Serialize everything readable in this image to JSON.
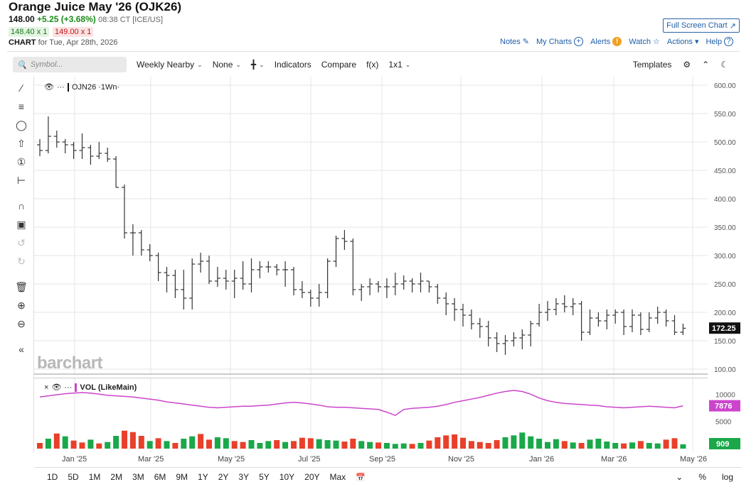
{
  "header": {
    "title": "Orange Juice May '26 (OJK26)",
    "last": "148.00",
    "change": "+5.25 (+3.68%)",
    "time": "08:38 CT [ICE/US]",
    "bid": "148.40 x 1",
    "ask": "149.00 x 1",
    "chart_label": "CHART",
    "chart_for": "for Tue, Apr 28th, 2026",
    "fullscreen": "Full Screen Chart"
  },
  "nav": {
    "notes": "Notes",
    "mycharts": "My Charts",
    "alerts": "Alerts",
    "watch": "Watch",
    "actions": "Actions",
    "help": "Help"
  },
  "toolbar": {
    "symbol_placeholder": "Symbol...",
    "period": "Weekly Nearby",
    "none": "None",
    "indicators": "Indicators",
    "compare": "Compare",
    "fx": "f(x)",
    "layout": "1x1",
    "templates": "Templates"
  },
  "legend": {
    "main": "OJN26 ·1Wn·",
    "vol": "VOL (LikeMain)"
  },
  "watermark": "barchart",
  "colors": {
    "up": "#1aa84a",
    "down": "#e8402a",
    "vol_line": "#cc44cc",
    "price_tag": "#111111",
    "accent": "#1f5ea8"
  },
  "price_axis": {
    "ticks": [
      "600.00",
      "550.00",
      "500.00",
      "450.00",
      "400.00",
      "350.00",
      "300.00",
      "250.00",
      "200.00",
      "150.00",
      "100.00"
    ],
    "last_tag": "172.25"
  },
  "vol_axis": {
    "ticks": [
      "10000",
      "5000"
    ],
    "line_tag": "7876",
    "bar_tag": "909"
  },
  "x_axis": {
    "ticks": [
      "Jan '25",
      "Mar '25",
      "May '25",
      "Jul '25",
      "Sep '25",
      "Nov '25",
      "Jan '26",
      "Mar '26",
      "May '26"
    ]
  },
  "ranges": [
    "1D",
    "5D",
    "1M",
    "2M",
    "3M",
    "6M",
    "9M",
    "1Y",
    "2Y",
    "3Y",
    "5Y",
    "10Y",
    "20Y",
    "Max"
  ],
  "bottom_right": {
    "pct": "%",
    "log": "log"
  },
  "chart_data": {
    "type": "ohlc",
    "ylim": [
      100,
      600
    ],
    "bars": [
      [
        495,
        505,
        475,
        485
      ],
      [
        485,
        545,
        480,
        510
      ],
      [
        510,
        520,
        490,
        500
      ],
      [
        500,
        505,
        480,
        495
      ],
      [
        495,
        500,
        470,
        485
      ],
      [
        485,
        515,
        470,
        490
      ],
      [
        490,
        495,
        460,
        475
      ],
      [
        475,
        500,
        470,
        480
      ],
      [
        480,
        490,
        465,
        470
      ],
      [
        470,
        475,
        420,
        420
      ],
      [
        420,
        425,
        330,
        340
      ],
      [
        340,
        355,
        300,
        340
      ],
      [
        340,
        345,
        300,
        310
      ],
      [
        310,
        320,
        290,
        300
      ],
      [
        300,
        305,
        255,
        270
      ],
      [
        270,
        280,
        235,
        265
      ],
      [
        265,
        275,
        225,
        240
      ],
      [
        240,
        275,
        205,
        225
      ],
      [
        225,
        295,
        205,
        285
      ],
      [
        285,
        305,
        270,
        290
      ],
      [
        290,
        300,
        250,
        255
      ],
      [
        255,
        280,
        245,
        260
      ],
      [
        260,
        275,
        240,
        255
      ],
      [
        255,
        275,
        225,
        260
      ],
      [
        260,
        290,
        240,
        250
      ],
      [
        250,
        295,
        235,
        275
      ],
      [
        275,
        290,
        260,
        280
      ],
      [
        280,
        290,
        270,
        280
      ],
      [
        280,
        285,
        265,
        275
      ],
      [
        275,
        290,
        245,
        275
      ],
      [
        275,
        280,
        230,
        240
      ],
      [
        240,
        255,
        225,
        235
      ],
      [
        235,
        240,
        210,
        225
      ],
      [
        225,
        250,
        210,
        235
      ],
      [
        235,
        295,
        225,
        290
      ],
      [
        290,
        335,
        280,
        330
      ],
      [
        330,
        345,
        310,
        325
      ],
      [
        325,
        330,
        230,
        240
      ],
      [
        240,
        250,
        220,
        245
      ],
      [
        245,
        260,
        230,
        250
      ],
      [
        250,
        255,
        235,
        245
      ],
      [
        245,
        260,
        225,
        245
      ],
      [
        245,
        270,
        230,
        250
      ],
      [
        250,
        265,
        240,
        255
      ],
      [
        255,
        260,
        235,
        250
      ],
      [
        250,
        270,
        235,
        255
      ],
      [
        255,
        255,
        235,
        245
      ],
      [
        245,
        250,
        215,
        225
      ],
      [
        225,
        235,
        195,
        215
      ],
      [
        215,
        225,
        185,
        205
      ],
      [
        205,
        215,
        175,
        195
      ],
      [
        195,
        205,
        170,
        180
      ],
      [
        180,
        190,
        155,
        175
      ],
      [
        175,
        185,
        140,
        155
      ],
      [
        155,
        165,
        130,
        145
      ],
      [
        145,
        160,
        125,
        150
      ],
      [
        150,
        165,
        140,
        155
      ],
      [
        155,
        170,
        135,
        160
      ],
      [
        160,
        185,
        140,
        180
      ],
      [
        180,
        215,
        175,
        200
      ],
      [
        200,
        220,
        185,
        205
      ],
      [
        205,
        225,
        195,
        215
      ],
      [
        215,
        230,
        200,
        210
      ],
      [
        210,
        225,
        195,
        215
      ],
      [
        215,
        220,
        150,
        165
      ],
      [
        165,
        205,
        160,
        190
      ],
      [
        190,
        200,
        175,
        185
      ],
      [
        185,
        205,
        170,
        195
      ],
      [
        195,
        205,
        180,
        200
      ],
      [
        200,
        205,
        160,
        175
      ],
      [
        175,
        205,
        165,
        195
      ],
      [
        195,
        200,
        160,
        170
      ],
      [
        170,
        200,
        165,
        190
      ],
      [
        190,
        210,
        180,
        200
      ],
      [
        200,
        205,
        175,
        185
      ],
      [
        185,
        195,
        160,
        165
      ],
      [
        165,
        180,
        160,
        172
      ]
    ],
    "volume_line": [
      9500,
      9700,
      9900,
      10100,
      10200,
      10300,
      10200,
      10000,
      9800,
      9700,
      9600,
      9500,
      9300,
      9100,
      8900,
      8600,
      8400,
      8200,
      8000,
      7800,
      7600,
      7500,
      7600,
      7700,
      7800,
      7800,
      7900,
      8000,
      8200,
      8400,
      8500,
      8400,
      8200,
      8000,
      7700,
      7600,
      7600,
      7500,
      7400,
      7300,
      7200,
      6700,
      6100,
      7200,
      7400,
      7500,
      7600,
      7800,
      8100,
      8500,
      8800,
      9100,
      9400,
      9800,
      10200,
      10500,
      10700,
      10500,
      10000,
      9300,
      8800,
      8500,
      8300,
      8200,
      8100,
      8000,
      7900,
      7700,
      7600,
      7500,
      7600,
      7700,
      7800,
      7700,
      7600,
      7500,
      7876
    ],
    "volume": [
      1200,
      2100,
      3200,
      2600,
      1700,
      1300,
      1900,
      1100,
      1400,
      2700,
      3800,
      3500,
      2700,
      1600,
      2200,
      1600,
      1200,
      2100,
      2600,
      3100,
      1900,
      2400,
      2200,
      1600,
      1400,
      1800,
      1200,
      1600,
      1800,
      1400,
      1600,
      2300,
      2200,
      2000,
      1800,
      1700,
      1500,
      2100,
      1600,
      1400,
      1300,
      1200,
      1000,
      1100,
      1000,
      1200,
      1700,
      2400,
      2800,
      3000,
      2300,
      1600,
      1400,
      1200,
      1800,
      2400,
      2800,
      3400,
      2600,
      2100,
      1400,
      2000,
      1600,
      1300,
      1200,
      1900,
      2100,
      1500,
      1200,
      1100,
      1300,
      1600,
      1200,
      1100,
      1900,
      2200,
      909
    ],
    "volume_up": [
      0,
      1,
      0,
      1,
      0,
      0,
      1,
      0,
      1,
      1,
      0,
      0,
      0,
      1,
      0,
      1,
      0,
      1,
      1,
      0,
      0,
      1,
      1,
      0,
      0,
      1,
      1,
      1,
      0,
      1,
      0,
      0,
      0,
      1,
      1,
      1,
      0,
      0,
      1,
      1,
      0,
      1,
      1,
      1,
      0,
      1,
      0,
      0,
      0,
      0,
      0,
      0,
      0,
      0,
      0,
      1,
      1,
      1,
      1,
      1,
      1,
      1,
      0,
      1,
      0,
      1,
      1,
      1,
      1,
      0,
      1,
      0,
      1,
      1,
      0,
      0,
      1
    ]
  }
}
